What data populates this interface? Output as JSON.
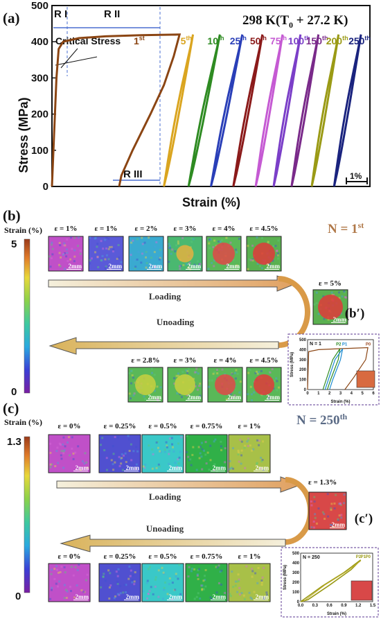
{
  "panel_a": {
    "letter": "(a)",
    "temperature": "298 K(T",
    "temperature_sub": "0",
    "temperature_tail": " + 27.2 K)",
    "regions": {
      "r1": "R I",
      "r2": "R II",
      "r3": "R III"
    },
    "critical_stress": "Critical Stress",
    "scale_bar": "1%",
    "colors": {
      "c1": "#8b4513",
      "c5": "#daa520",
      "c10": "#2e8b22",
      "c25": "#2a3fb8",
      "c50": "#8b1a1a",
      "c75": "#c55ad3",
      "c100": "#7b3fc8",
      "c150": "#7a2a8a",
      "c200": "#9a9a15",
      "c250": "#1a237e"
    }
  },
  "chart_data": {
    "type": "line",
    "title": "298 K(T0 + 27.2 K)",
    "xlabel": "Strain (%)",
    "ylabel": "Stress (MPa)",
    "ylim": [
      0,
      500
    ],
    "yticks": [
      "0",
      "100",
      "200",
      "300",
      "400",
      "500"
    ],
    "x_scale_bar": "1%",
    "x_ticks_shown": false,
    "series": [
      {
        "name": "1st",
        "label": "1",
        "sup": "st",
        "color": "#8b4513",
        "loading": [
          [
            0.0,
            0
          ],
          [
            0.05,
            150
          ],
          [
            0.1,
            300
          ],
          [
            0.15,
            380
          ],
          [
            0.25,
            400
          ],
          [
            0.6,
            410
          ],
          [
            1.2,
            415
          ],
          [
            2.0,
            418
          ],
          [
            2.85,
            420
          ]
        ],
        "unloading": [
          [
            2.85,
            420
          ],
          [
            2.72,
            360
          ],
          [
            2.5,
            280
          ],
          [
            2.2,
            200
          ],
          [
            1.8,
            100
          ],
          [
            1.55,
            30
          ],
          [
            1.5,
            0
          ]
        ]
      },
      {
        "name": "5th",
        "label": "5",
        "sup": "th",
        "color": "#daa520",
        "x0": 2.5,
        "x1": 3.15
      },
      {
        "name": "10th",
        "label": "10",
        "sup": "th",
        "color": "#2e8b22",
        "x0": 3.05,
        "x1": 3.75
      },
      {
        "name": "25th",
        "label": "25",
        "sup": "th",
        "color": "#2a3fb8",
        "x0": 3.55,
        "x1": 4.25
      },
      {
        "name": "50th",
        "label": "50",
        "sup": "th",
        "color": "#8b1a1a",
        "x0": 4.05,
        "x1": 4.7
      },
      {
        "name": "75th",
        "label": "75",
        "sup": "th",
        "color": "#c55ad3",
        "x0": 4.55,
        "x1": 5.15
      },
      {
        "name": "100th",
        "label": "100",
        "sup": "th",
        "color": "#7b3fc8",
        "x0": 4.95,
        "x1": 5.55
      },
      {
        "name": "150th",
        "label": "150",
        "sup": "th",
        "color": "#7a2a8a",
        "x0": 5.35,
        "x1": 5.95
      },
      {
        "name": "200th",
        "label": "200",
        "sup": "th",
        "color": "#9a9a15",
        "x0": 5.8,
        "x1": 6.4
      },
      {
        "name": "250th",
        "label": "250",
        "sup": "th",
        "color": "#1a237e",
        "x0": 6.3,
        "x1": 6.9
      }
    ],
    "peak_stress": 420
  },
  "panel_b": {
    "letter": "(b)",
    "colorbar_title": "Strain (%)",
    "colorbar_max": "5",
    "colorbar_min": "0",
    "cycle_label": "N = 1",
    "cycle_sup": "st",
    "top_strains": [
      "ε = 1%",
      "ε = 1%",
      "ε = 2%",
      "ε = 3%",
      "ε = 4%",
      "ε = 4.5%"
    ],
    "bottom_strains": [
      "ε = 2.8%",
      "ε = 3%",
      "ε = 4%",
      "ε = 4.5%"
    ],
    "peak_strain": "ε = 5%",
    "loading": "Loading",
    "unloading": "Unoading",
    "scale": "2mm",
    "inset_tag": "(b′)",
    "inset": {
      "title": "N = 1",
      "ylabel": "Stress (MPa)",
      "xlabel": "Strain (%)",
      "yticks": [
        "0",
        "100",
        "200",
        "300",
        "400",
        "500"
      ],
      "xticks": [
        "0",
        "1",
        "2",
        "3",
        "4",
        "5",
        "6"
      ],
      "points": [
        "P2",
        "P1",
        "P0"
      ]
    }
  },
  "panel_c": {
    "letter": "(c)",
    "colorbar_title": "Strain (%)",
    "colorbar_max": "1.3",
    "colorbar_min": "0",
    "cycle_label": "N = 250",
    "cycle_sup": "th",
    "top_strains": [
      "ε = 0%",
      "ε = 0.25%",
      "ε = 0.5%",
      "ε = 0.75%",
      "ε = 1%"
    ],
    "bottom_strains": [
      "ε = 0%",
      "ε = 0.25%",
      "ε = 0.5%",
      "ε = 0.75%",
      "ε = 1%"
    ],
    "peak_strain": "ε = 1.3%",
    "loading": "Loading",
    "unloading": "Unoading",
    "scale": "2mm",
    "inset_tag": "(c′)",
    "inset": {
      "title": "N = 250",
      "ylabel": "Stress (MPa)",
      "xlabel": "Strain (%)",
      "yticks": [
        "0",
        "100",
        "200",
        "300",
        "400",
        "500"
      ],
      "xticks": [
        "0.0",
        "0.3",
        "0.6",
        "0.9",
        "1.2",
        "1.5"
      ],
      "points": [
        "P2",
        "P1",
        "P0"
      ]
    }
  }
}
